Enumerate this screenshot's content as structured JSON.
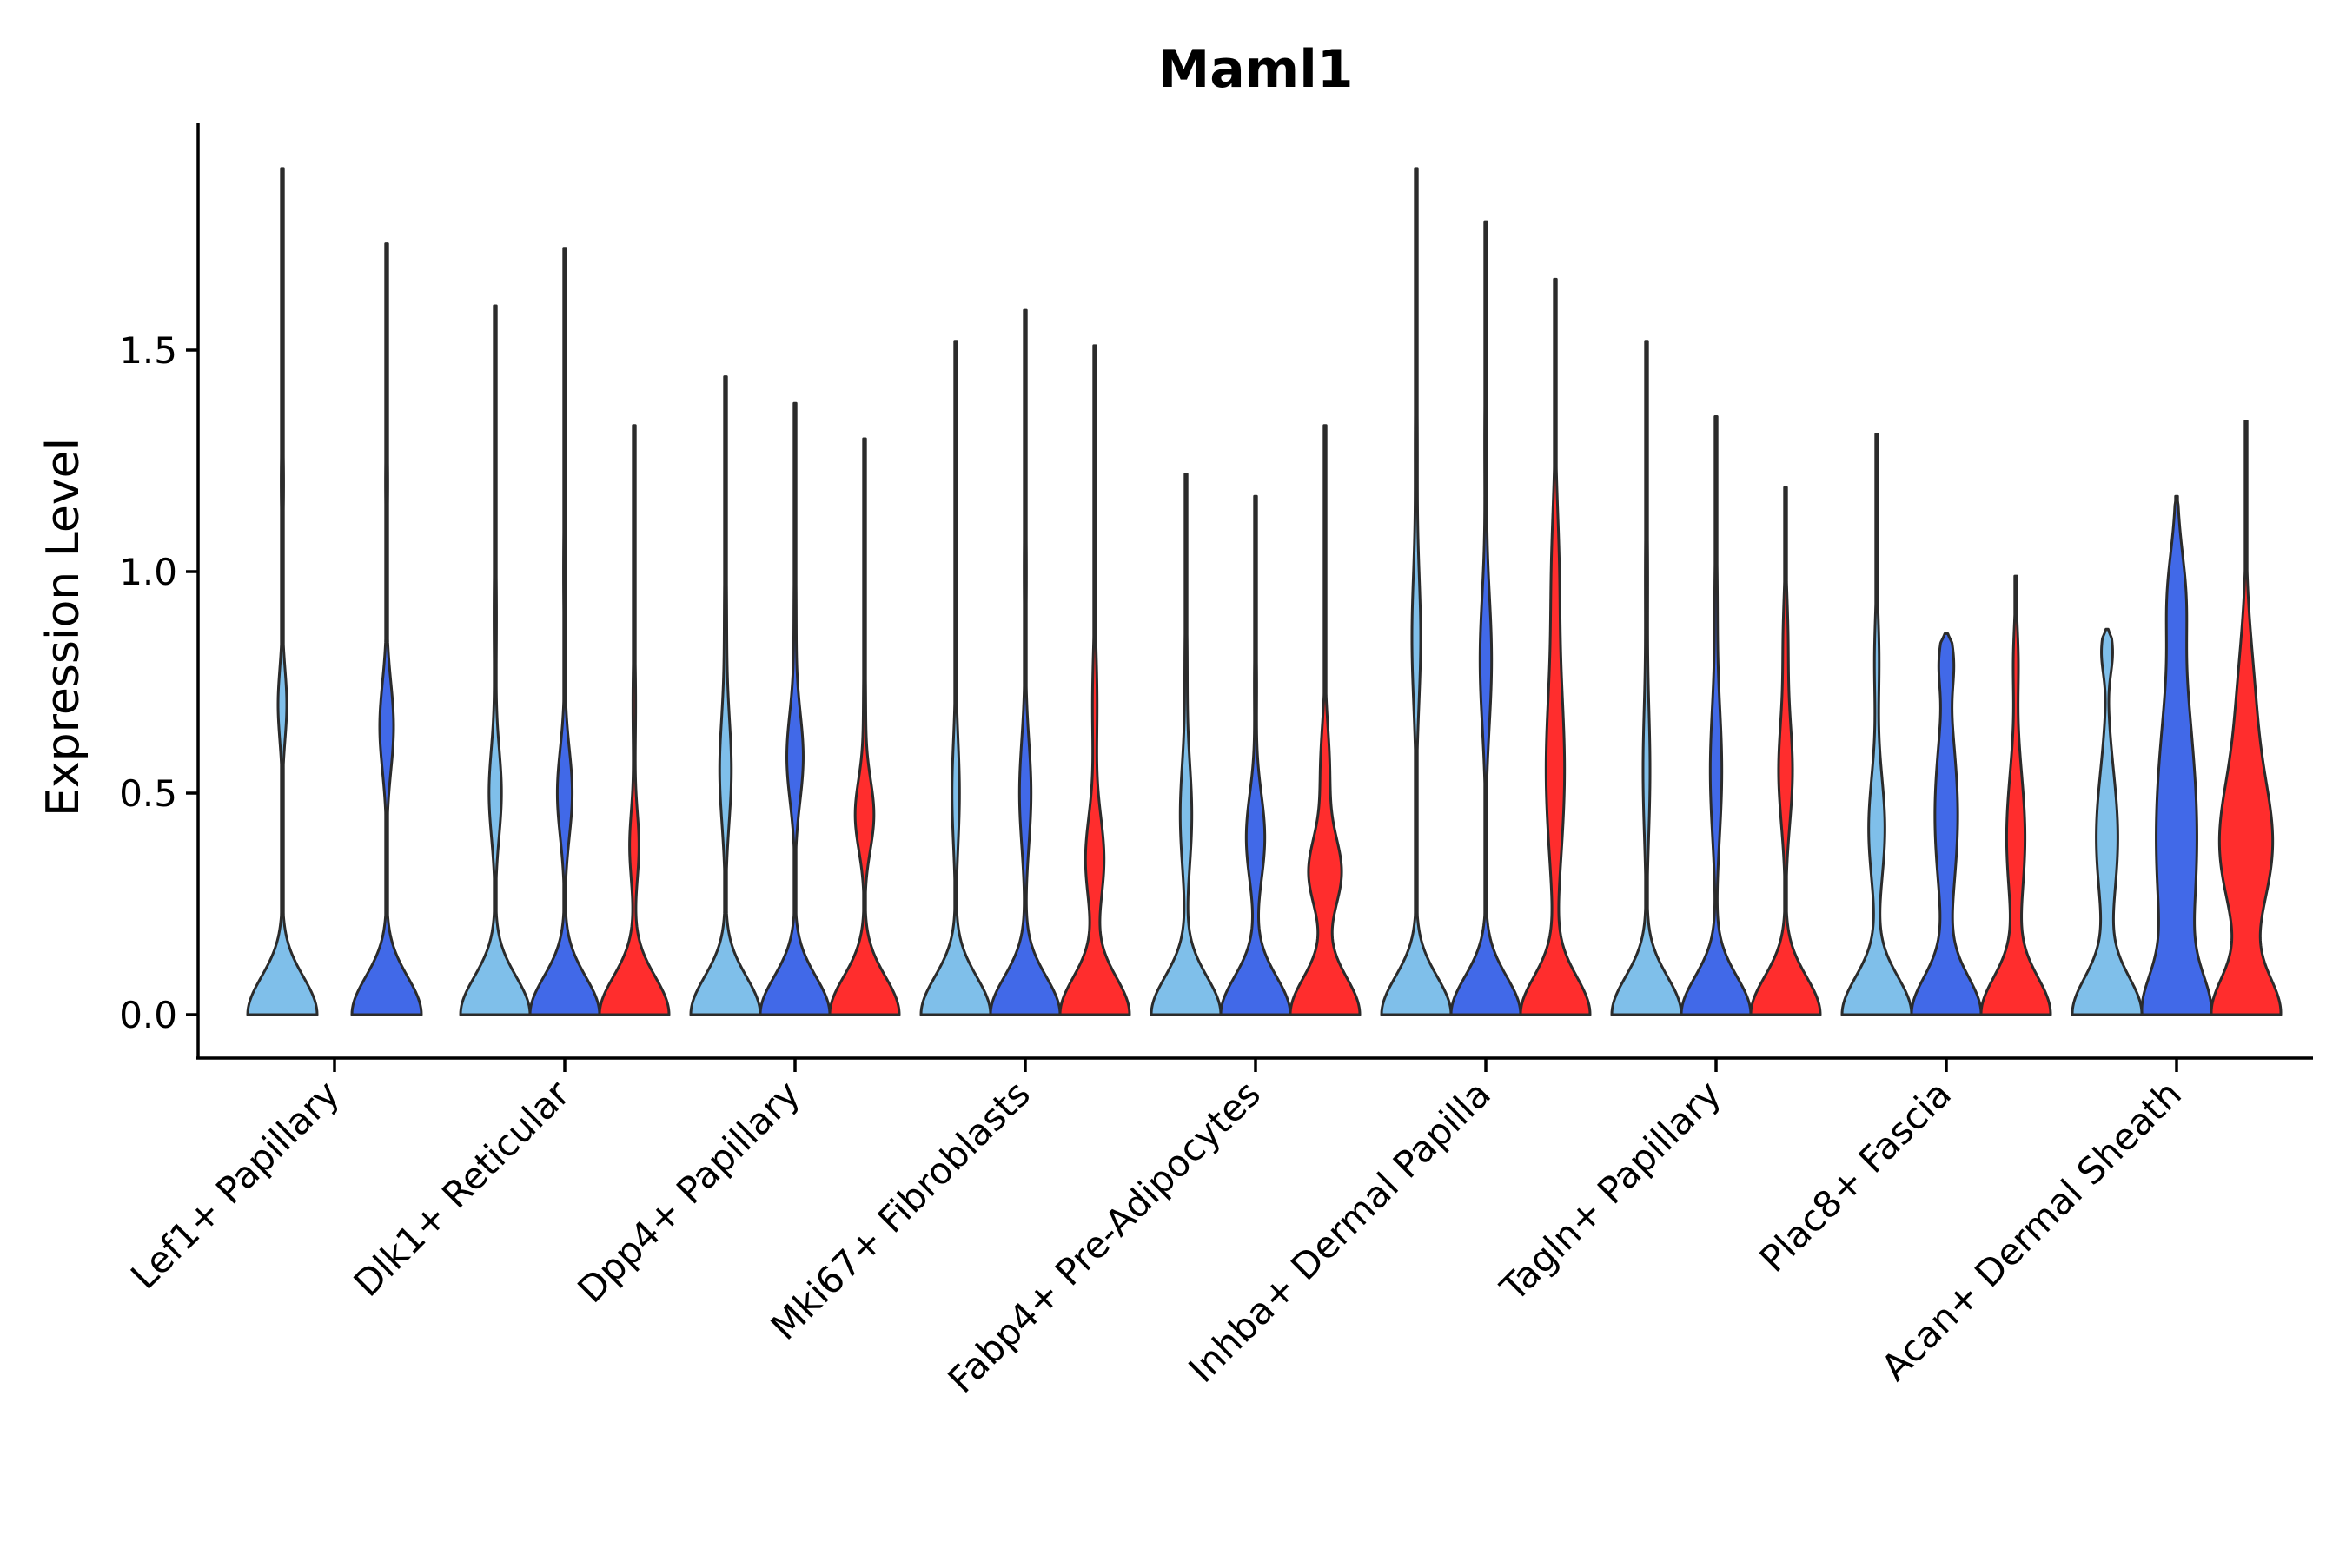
{
  "chart_data": {
    "type": "violin",
    "title": "Maml1",
    "xlabel": "",
    "ylabel": "Expression Level",
    "ylim": [
      -0.1,
      2.0
    ],
    "yticks": [
      0.0,
      0.5,
      1.0,
      1.5
    ],
    "ytick_labels": [
      "0.0",
      "0.5",
      "1.0",
      "1.5"
    ],
    "grid": false,
    "legend": "none",
    "series_colors": [
      "#7fbfea",
      "#4169e8",
      "#ff2d2d"
    ],
    "groups": [
      {
        "label": "Lef1+ Papillary",
        "violins": [
          {
            "series": 0,
            "max": 1.91,
            "base_width": 0.28,
            "modes": [
              [
                0.7,
                0.035,
                0.08
              ],
              [
                1.2,
                0.01,
                0.1
              ]
            ]
          },
          {
            "series": 1,
            "max": 1.74,
            "base_width": 0.3,
            "modes": [
              [
                0.65,
                0.06,
                0.1
              ],
              [
                1.2,
                0.01,
                0.1
              ]
            ]
          }
        ]
      },
      {
        "label": "Dlk1+ Reticular",
        "violins": [
          {
            "series": 0,
            "max": 1.6,
            "base_width": 0.28,
            "modes": [
              [
                0.5,
                0.05,
                0.1
              ],
              [
                0.9,
                0.01,
                0.15
              ]
            ]
          },
          {
            "series": 1,
            "max": 1.73,
            "base_width": 0.28,
            "modes": [
              [
                0.5,
                0.06,
                0.1
              ],
              [
                1.0,
                0.01,
                0.15
              ]
            ]
          },
          {
            "series": 2,
            "max": 1.33,
            "base_width": 0.3,
            "modes": [
              [
                0.38,
                0.04,
                0.08
              ],
              [
                0.7,
                0.012,
                0.12
              ]
            ]
          }
        ]
      },
      {
        "label": "Dpp4+ Papillary",
        "violins": [
          {
            "series": 0,
            "max": 1.44,
            "base_width": 0.3,
            "modes": [
              [
                0.55,
                0.05,
                0.12
              ],
              [
                0.9,
                0.01,
                0.15
              ]
            ]
          },
          {
            "series": 1,
            "max": 1.38,
            "base_width": 0.3,
            "modes": [
              [
                0.58,
                0.07,
                0.1
              ],
              [
                0.9,
                0.01,
                0.15
              ]
            ]
          },
          {
            "series": 2,
            "max": 1.3,
            "base_width": 0.3,
            "modes": [
              [
                0.45,
                0.08,
                0.08
              ],
              [
                0.7,
                0.01,
                0.12
              ]
            ]
          }
        ]
      },
      {
        "label": "Mki67+ Fibroblasts",
        "violins": [
          {
            "series": 0,
            "max": 1.52,
            "base_width": 0.28,
            "modes": [
              [
                0.5,
                0.03,
                0.12
              ],
              [
                1.0,
                0.008,
                0.15
              ]
            ]
          },
          {
            "series": 1,
            "max": 1.59,
            "base_width": 0.3,
            "modes": [
              [
                0.5,
                0.05,
                0.12
              ],
              [
                1.0,
                0.01,
                0.15
              ]
            ]
          },
          {
            "series": 2,
            "max": 1.51,
            "base_width": 0.3,
            "modes": [
              [
                0.35,
                0.08,
                0.1
              ],
              [
                0.7,
                0.02,
                0.12
              ]
            ]
          }
        ]
      },
      {
        "label": "Fabp4+ Pre-Adipocytes",
        "violins": [
          {
            "series": 0,
            "max": 1.22,
            "base_width": 0.3,
            "modes": [
              [
                0.45,
                0.05,
                0.12
              ],
              [
                0.8,
                0.01,
                0.12
              ]
            ]
          },
          {
            "series": 1,
            "max": 1.17,
            "base_width": 0.3,
            "modes": [
              [
                0.4,
                0.08,
                0.1
              ],
              [
                0.75,
                0.01,
                0.1
              ]
            ]
          },
          {
            "series": 2,
            "max": 1.33,
            "base_width": 0.3,
            "modes": [
              [
                0.32,
                0.14,
                0.08
              ],
              [
                0.55,
                0.04,
                0.1
              ]
            ]
          }
        ]
      },
      {
        "label": "Inhba+ Dermal Papilla",
        "violins": [
          {
            "series": 0,
            "max": 1.91,
            "base_width": 0.32,
            "modes": [
              [
                0.85,
                0.04,
                0.15
              ],
              [
                1.3,
                0.01,
                0.15
              ]
            ]
          },
          {
            "series": 1,
            "max": 1.79,
            "base_width": 0.3,
            "modes": [
              [
                0.8,
                0.05,
                0.15
              ],
              [
                1.3,
                0.01,
                0.15
              ]
            ]
          },
          {
            "series": 2,
            "max": 1.66,
            "base_width": 0.3,
            "modes": [
              [
                0.55,
                0.08,
                0.2
              ],
              [
                1.0,
                0.03,
                0.15
              ]
            ]
          }
        ]
      },
      {
        "label": "Tagln+ Papillary",
        "violins": [
          {
            "series": 0,
            "max": 1.52,
            "base_width": 0.3,
            "modes": [
              [
                0.55,
                0.03,
                0.15
              ],
              [
                1.0,
                0.01,
                0.15
              ]
            ]
          },
          {
            "series": 1,
            "max": 1.35,
            "base_width": 0.3,
            "modes": [
              [
                0.55,
                0.05,
                0.15
              ],
              [
                0.95,
                0.01,
                0.12
              ]
            ]
          },
          {
            "series": 2,
            "max": 1.19,
            "base_width": 0.3,
            "modes": [
              [
                0.55,
                0.06,
                0.12
              ],
              [
                0.85,
                0.02,
                0.1
              ]
            ]
          }
        ]
      },
      {
        "label": "Plac8+ Fascia",
        "violins": [
          {
            "series": 0,
            "max": 1.31,
            "base_width": 0.3,
            "modes": [
              [
                0.42,
                0.07,
                0.12
              ],
              [
                0.8,
                0.02,
                0.1
              ]
            ]
          },
          {
            "series": 1,
            "max": 0.86,
            "base_width": 0.3,
            "modes": [
              [
                0.45,
                0.1,
                0.18
              ],
              [
                0.8,
                0.05,
                0.06
              ]
            ]
          },
          {
            "series": 2,
            "max": 0.99,
            "base_width": 0.3,
            "modes": [
              [
                0.4,
                0.08,
                0.15
              ],
              [
                0.8,
                0.02,
                0.08
              ]
            ]
          }
        ]
      },
      {
        "label": "Acan+ Dermal Sheath",
        "violins": [
          {
            "series": 0,
            "max": 0.87,
            "base_width": 0.32,
            "modes": [
              [
                0.4,
                0.1,
                0.15
              ],
              [
                0.82,
                0.05,
                0.05
              ]
            ]
          },
          {
            "series": 1,
            "max": 1.17,
            "base_width": 0.36,
            "modes": [
              [
                0.4,
                0.28,
                0.3
              ],
              [
                0.95,
                0.08,
                0.1
              ]
            ]
          },
          {
            "series": 2,
            "max": 1.34,
            "base_width": 0.34,
            "modes": [
              [
                0.38,
                0.26,
                0.15
              ],
              [
                0.7,
                0.08,
                0.15
              ]
            ]
          }
        ]
      }
    ]
  }
}
